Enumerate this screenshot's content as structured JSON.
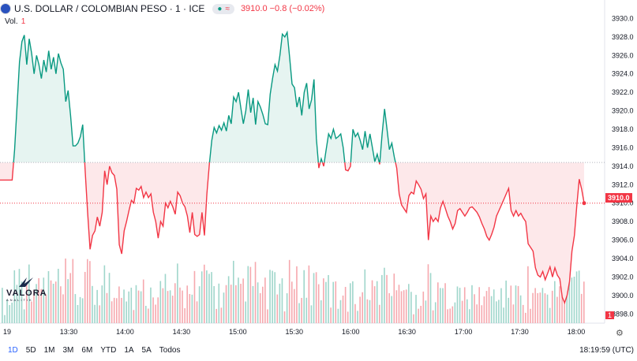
{
  "header": {
    "symbol": "U.S. DOLLAR / COLOMBIAN PESO · 1 · ICE",
    "wave_glyph": "≈",
    "price_change": "3910.0 −0.8 (−0.02%)"
  },
  "volume": {
    "label": "Vol.",
    "value": "1"
  },
  "range_buttons": [
    "1D",
    "5D",
    "1M",
    "3M",
    "6M",
    "YTD",
    "1A",
    "5A",
    "Todos"
  ],
  "active_range": "1D",
  "clock": "18:19:59 (UTC)",
  "logo": {
    "name": "VALORA",
    "sub": "ANALITIK"
  },
  "price_tag": "3910.0",
  "volume_tag": "1",
  "colors": {
    "up": "#089981",
    "down": "#f23645",
    "up_fill": "#e6f4f1",
    "down_fill": "#fde8ea"
  },
  "chart_data": {
    "type": "area",
    "title": "U.S. DOLLAR / COLOMBIAN PESO · 1 · ICE",
    "baseline": 3914.4,
    "last_price": 3910.0,
    "ylim": [
      3897,
      3932
    ],
    "y_ticks": [
      "3930.0",
      "3928.0",
      "3926.0",
      "3924.0",
      "3922.0",
      "3920.0",
      "3918.0",
      "3916.0",
      "3914.0",
      "3912.0",
      "3910.0",
      "3908.0",
      "3906.0",
      "3904.0",
      "3902.0",
      "3900.0",
      "3898.0"
    ],
    "y_tick_values": [
      3930,
      3928,
      3926,
      3924,
      3922,
      3920,
      3918,
      3916,
      3914,
      3912,
      3910,
      3908,
      3906,
      3904,
      3902,
      3900,
      3898
    ],
    "x_ticks": [
      "19",
      "13:30",
      "14:00",
      "14:30",
      "15:00",
      "15:30",
      "16:00",
      "16:30",
      "17:00",
      "17:30",
      "18:00"
    ],
    "x_tick_minutes": [
      -32,
      0,
      30,
      60,
      90,
      120,
      150,
      180,
      210,
      240,
      270
    ],
    "prices": [
      3912.5,
      3912.5,
      3912.5,
      3912.5,
      3912.5,
      3912.5,
      3915.8,
      3920.5,
      3925.3,
      3927.5,
      3928.2,
      3925.0,
      3927.8,
      3926.2,
      3924.0,
      3926.0,
      3925.0,
      3923.5,
      3925.5,
      3924.2,
      3926.5,
      3924.5,
      3925.8,
      3924.0,
      3926.2,
      3925.2,
      3924.5,
      3921.0,
      3922.2,
      3919.5,
      3916.2,
      3916.2,
      3916.5,
      3917.2,
      3918.5,
      3913.5,
      3909.0,
      3905.0,
      3906.5,
      3907.0,
      3908.5,
      3907.5,
      3909.0,
      3913.5,
      3912.0,
      3914.0,
      3913.3,
      3913.0,
      3911.5,
      3905.5,
      3904.5,
      3907.0,
      3908.0,
      3909.2,
      3910.3,
      3910.0,
      3911.6,
      3911.4,
      3911.8,
      3910.6,
      3911.2,
      3910.6,
      3911.0,
      3909.0,
      3908.0,
      3906.2,
      3908.0,
      3907.5,
      3910.0,
      3909.5,
      3910.2,
      3909.6,
      3908.8,
      3911.2,
      3910.8,
      3910.0,
      3909.6,
      3908.6,
      3906.8,
      3909.0,
      3906.6,
      3906.4,
      3906.6,
      3909.0,
      3906.5,
      3911.0,
      3914.2,
      3916.8,
      3918.2,
      3917.6,
      3918.4,
      3917.9,
      3918.7,
      3917.8,
      3919.5,
      3918.6,
      3921.5,
      3921.0,
      3922.0,
      3920.2,
      3918.6,
      3920.0,
      3922.3,
      3919.8,
      3921.4,
      3918.5,
      3921.0,
      3920.4,
      3919.6,
      3918.6,
      3918.5,
      3921.8,
      3923.5,
      3925.0,
      3924.3,
      3926.0,
      3928.3,
      3928.0,
      3928.5,
      3925.8,
      3922.9,
      3922.5,
      3920.4,
      3921.5,
      3919.5,
      3922.0,
      3923.0,
      3920.2,
      3921.2,
      3923.4,
      3917.0,
      3913.8,
      3914.8,
      3914.0,
      3915.8,
      3917.5,
      3917.0,
      3918.0,
      3917.0,
      3917.2,
      3917.5,
      3916.0,
      3913.6,
      3913.5,
      3914.0,
      3918.0,
      3917.2,
      3917.6,
      3916.8,
      3915.8,
      3917.8,
      3916.0,
      3917.5,
      3916.0,
      3914.5,
      3915.3,
      3914.2,
      3917.5,
      3920.2,
      3918.0,
      3915.8,
      3916.5,
      3915.0,
      3913.8,
      3911.0,
      3909.8,
      3909.4,
      3909.0,
      3910.8,
      3911.2,
      3911.0,
      3912.4,
      3912.0,
      3911.5,
      3910.5,
      3911.0,
      3906.0,
      3908.6,
      3908.0,
      3908.4,
      3908.0,
      3909.5,
      3910.2,
      3909.4,
      3908.6,
      3908.0,
      3907.2,
      3907.8,
      3909.2,
      3909.4,
      3909.0,
      3908.6,
      3909.0,
      3909.5,
      3909.6,
      3909.3,
      3909.0,
      3908.5,
      3907.8,
      3907.2,
      3906.4,
      3906.0,
      3906.6,
      3907.4,
      3908.6,
      3909.2,
      3909.8,
      3910.4,
      3911.0,
      3911.6,
      3909.2,
      3908.6,
      3909.2,
      3908.6,
      3908.9,
      3908.4,
      3908.0,
      3905.6,
      3905.2,
      3904.8,
      3903.0,
      3902.2,
      3902.0,
      3902.6,
      3901.7,
      3902.4,
      3903.1,
      3902.0,
      3903.0,
      3902.2,
      3901.8,
      3899.8,
      3899.2,
      3900.0,
      3901.5,
      3904.8,
      3906.5,
      3909.8,
      3912.6,
      3911.5,
      3910.0
    ]
  }
}
